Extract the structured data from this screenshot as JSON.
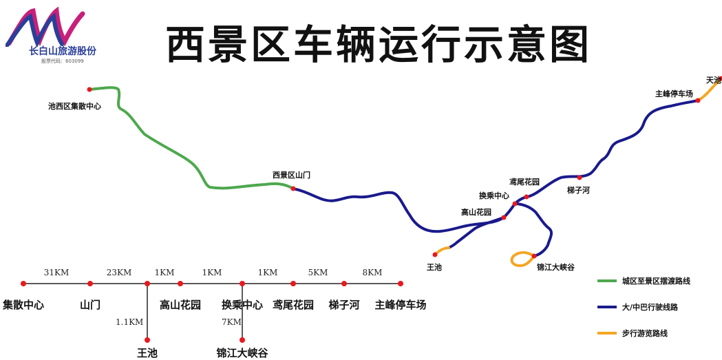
{
  "title": "西景区车辆运行示意图",
  "brand": {
    "name": "长白山旅游股份",
    "stock_code": "股票代码：603099"
  },
  "map_labels": {
    "chixi": "池西区集散中心",
    "gate": "西景区山门",
    "tianchi": "天池",
    "zhufeng": "主峰停车场",
    "tizihe": "梯子河",
    "yuanwei": "鸢尾花园",
    "huancheng": "换乘中心",
    "gaoshan": "高山花园",
    "wangchi": "王池",
    "jinjiang": "锦江大峡谷"
  },
  "legend": [
    {
      "label": "城区至景区摆渡路线",
      "color": "#4da84d"
    },
    {
      "label": "大/中巴行驶线路",
      "color": "#1a1a8c"
    },
    {
      "label": "步行游览路线",
      "color": "#f5a623"
    }
  ],
  "schematic": {
    "stops": [
      "集散中心",
      "山门",
      "高山花园",
      "换乘中心",
      "鸢尾花园",
      "梯子河",
      "主峰停车场"
    ],
    "segments": [
      "31KM",
      "23KM",
      "1KM",
      "1KM",
      "1KM",
      "5KM",
      "8KM"
    ],
    "branches": [
      {
        "distance": "1.1KM",
        "stop": "王池"
      },
      {
        "distance": "7KM",
        "stop": "锦江大峡谷"
      }
    ]
  }
}
